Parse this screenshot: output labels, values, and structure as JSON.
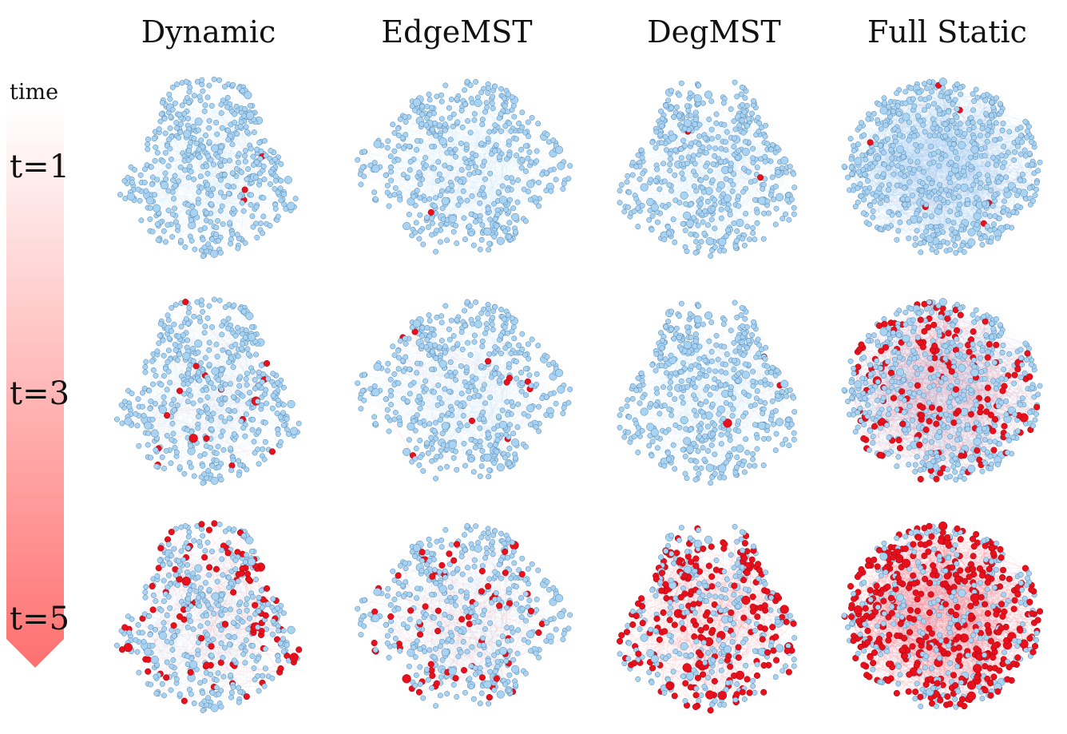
{
  "columns": [
    {
      "title": "Dynamic"
    },
    {
      "title": "EdgeMST"
    },
    {
      "title": "DegMST"
    },
    {
      "title": "Full Static"
    }
  ],
  "time_axis": {
    "label": "time",
    "steps": [
      "t=1",
      "t=3",
      "t=5"
    ],
    "gradient_top": "#ffffff",
    "gradient_bottom": "#ff7070"
  },
  "colors": {
    "node_fill": "#a9d3f2",
    "node_stroke": "#4f7fa8",
    "edge_blue": "#9cc9f0",
    "infected_fill": "#e8101c",
    "infected_edge": "#ff6f7a"
  },
  "infected_share": {
    "Dynamic": [
      0.005,
      0.04,
      0.18
    ],
    "EdgeMST": [
      0.005,
      0.03,
      0.16
    ],
    "DegMST": [
      0.005,
      0.01,
      0.45
    ],
    "Full Static": [
      0.005,
      0.25,
      0.55
    ]
  }
}
